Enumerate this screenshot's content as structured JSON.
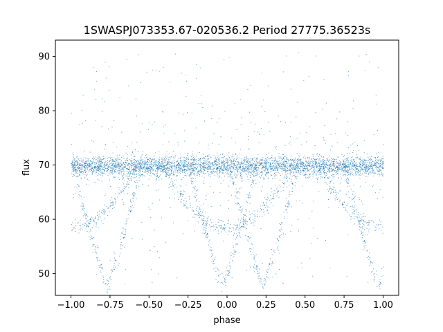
{
  "chart_data": {
    "type": "scatter",
    "title": "1SWASPJ073353.67-020536.2 Period 27775.36523s",
    "xlabel": "phase",
    "ylabel": "flux",
    "xlim": [
      -1.1,
      1.1
    ],
    "ylim": [
      46,
      93
    ],
    "xticks": [
      -1.0,
      -0.75,
      -0.5,
      -0.25,
      0.0,
      0.25,
      0.5,
      0.75,
      1.0
    ],
    "xtick_labels": [
      "−1.00",
      "−0.75",
      "−0.50",
      "−0.25",
      "0.00",
      "0.25",
      "0.50",
      "0.75",
      "1.00"
    ],
    "yticks": [
      50,
      60,
      70,
      80,
      90
    ],
    "ytick_labels": [
      "50",
      "60",
      "70",
      "80",
      "90"
    ],
    "grid": false,
    "point_color": "#1f77b4",
    "series": [
      {
        "role": "baseline",
        "x_range": [
          -1.0,
          1.0
        ],
        "level": 69.8,
        "spread": 0.9,
        "outlier_spread": 4.5
      },
      {
        "role": "primary-eclipse-branches",
        "minimum_phases": [
          -0.77,
          -0.03,
          0.23,
          0.97
        ],
        "bottom": 48,
        "top": 70,
        "halfwidth": 0.22
      },
      {
        "role": "secondary-eclipse",
        "center_phases": [
          -1.0,
          0.0,
          1.0
        ],
        "bottom": 58.5,
        "top": 70,
        "halfwidth": 0.42
      }
    ],
    "scatter_outliers": {
      "y_range": [
        48,
        91
      ]
    }
  }
}
